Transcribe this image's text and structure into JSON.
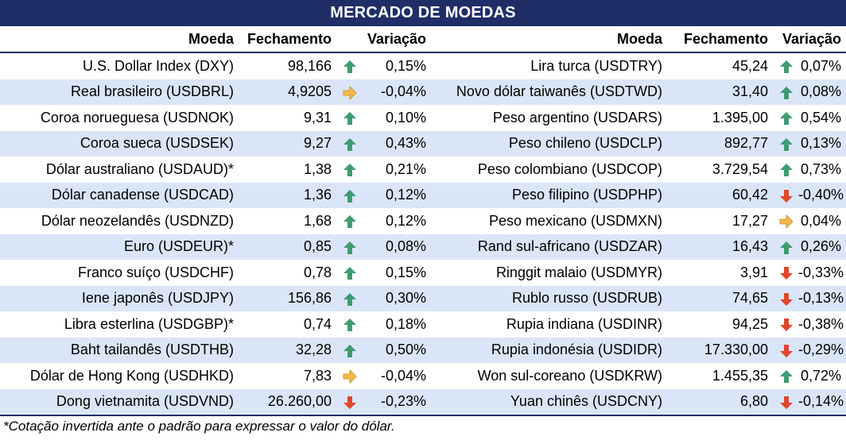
{
  "title": "MERCADO DE MOEDAS",
  "headers": {
    "moeda": "Moeda",
    "fechamento": "Fechamento",
    "variacao": "Variação"
  },
  "colors": {
    "header_bg": "#1f2e66",
    "stripe": "#dae6f7",
    "up": "#3f9b71",
    "down": "#e0462a",
    "flat": "#f2b84b"
  },
  "left": [
    {
      "name": "U.S. Dollar Index (DXY)",
      "close": "98,166",
      "trend": "up",
      "change": "0,15%"
    },
    {
      "name": "Real brasileiro (USDBRL)",
      "close": "4,9205",
      "trend": "flat",
      "change": "-0,04%"
    },
    {
      "name": "Coroa norueguesa (USDNOK)",
      "close": "9,31",
      "trend": "up",
      "change": "0,10%"
    },
    {
      "name": "Coroa sueca (USDSEK)",
      "close": "9,27",
      "trend": "up",
      "change": "0,43%"
    },
    {
      "name": "Dólar australiano (USDAUD)*",
      "close": "1,38",
      "trend": "up",
      "change": "0,21%"
    },
    {
      "name": "Dólar canadense (USDCAD)",
      "close": "1,36",
      "trend": "up",
      "change": "0,12%"
    },
    {
      "name": "Dólar neozelandês (USDNZD)",
      "close": "1,68",
      "trend": "up",
      "change": "0,12%"
    },
    {
      "name": "Euro (USDEUR)*",
      "close": "0,85",
      "trend": "up",
      "change": "0,08%"
    },
    {
      "name": "Franco suíço (USDCHF)",
      "close": "0,78",
      "trend": "up",
      "change": "0,15%"
    },
    {
      "name": "Iene japonês (USDJPY)",
      "close": "156,86",
      "trend": "up",
      "change": "0,30%"
    },
    {
      "name": "Libra esterlina (USDGBP)*",
      "close": "0,74",
      "trend": "up",
      "change": "0,18%"
    },
    {
      "name": "Baht tailandês (USDTHB)",
      "close": "32,28",
      "trend": "up",
      "change": "0,50%"
    },
    {
      "name": "Dólar de Hong Kong (USDHKD)",
      "close": "7,83",
      "trend": "flat",
      "change": "-0,04%"
    },
    {
      "name": "Dong vietnamita (USDVND)",
      "close": "26.260,00",
      "trend": "down",
      "change": "-0,23%"
    }
  ],
  "right": [
    {
      "name": "Lira turca (USDTRY)",
      "close": "45,24",
      "trend": "up",
      "change": "0,07%"
    },
    {
      "name": "Novo dólar taiwanês (USDTWD)",
      "close": "31,40",
      "trend": "up",
      "change": "0,08%"
    },
    {
      "name": "Peso argentino (USDARS)",
      "close": "1.395,00",
      "trend": "up",
      "change": "0,54%"
    },
    {
      "name": "Peso chileno (USDCLP)",
      "close": "892,77",
      "trend": "up",
      "change": "0,13%"
    },
    {
      "name": "Peso colombiano (USDCOP)",
      "close": "3.729,54",
      "trend": "up",
      "change": "0,73%"
    },
    {
      "name": "Peso filipino (USDPHP)",
      "close": "60,42",
      "trend": "down",
      "change": "-0,40%"
    },
    {
      "name": "Peso mexicano (USDMXN)",
      "close": "17,27",
      "trend": "flat",
      "change": "0,04%"
    },
    {
      "name": "Rand sul-africano (USDZAR)",
      "close": "16,43",
      "trend": "up",
      "change": "0,26%"
    },
    {
      "name": "Ringgit malaio (USDMYR)",
      "close": "3,91",
      "trend": "down",
      "change": "-0,33%"
    },
    {
      "name": "Rublo russo (USDRUB)",
      "close": "74,65",
      "trend": "down",
      "change": "-0,13%"
    },
    {
      "name": "Rupia indiana (USDINR)",
      "close": "94,25",
      "trend": "down",
      "change": "-0,38%"
    },
    {
      "name": "Rupia indonésia (USDIDR)",
      "close": "17.330,00",
      "trend": "down",
      "change": "-0,29%"
    },
    {
      "name": "Won sul-coreano (USDKRW)",
      "close": "1.455,35",
      "trend": "up",
      "change": "0,72%"
    },
    {
      "name": "Yuan chinês (USDCNY)",
      "close": "6,80",
      "trend": "down",
      "change": "-0,14%"
    }
  ],
  "footnote": "*Cotação invertida ante o padrão para expressar o valor do dólar."
}
